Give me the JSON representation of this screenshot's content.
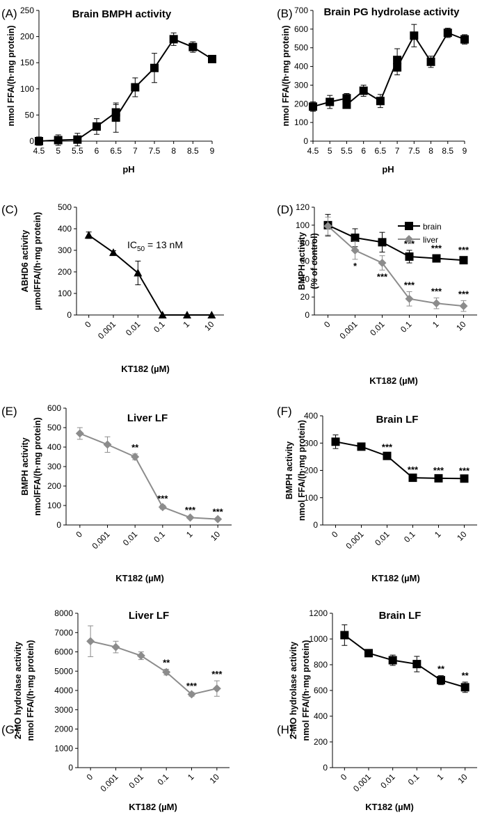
{
  "chart_data": [
    {
      "id": "A",
      "panel_label": "(A)",
      "type": "line",
      "title": "Brain BMPH activity",
      "xlabel": "pH",
      "ylabel": [
        "nmol FFA/(h·mg protein)"
      ],
      "x_kind": "numeric",
      "xlim": [
        4.5,
        9
      ],
      "x_ticks": [
        "4.5",
        "5",
        "5.5",
        "6",
        "6.5",
        "7",
        "7.5",
        "8",
        "8.5",
        "9"
      ],
      "ylim": [
        0,
        250
      ],
      "y_ticks": [
        "0",
        "50",
        "100",
        "150",
        "200",
        "250"
      ],
      "series": [
        {
          "name": "brain",
          "color": "#000000",
          "marker": "square",
          "x": [
            4.5,
            5,
            5.5,
            6,
            6.5,
            6.5,
            7,
            7.5,
            8,
            8.5,
            9
          ],
          "y": [
            0,
            2,
            3,
            28,
            55,
            45,
            103,
            140,
            195,
            180,
            157
          ],
          "err": [
            8,
            10,
            12,
            15,
            15,
            28,
            18,
            28,
            12,
            10,
            5
          ]
        }
      ],
      "significance": [],
      "annotations": []
    },
    {
      "id": "B",
      "panel_label": "(B)",
      "type": "line",
      "title": "Brain PG hydrolase activity",
      "xlabel": "pH",
      "ylabel": [
        "nmol FFA/(h·mg protein)"
      ],
      "x_kind": "numeric",
      "xlim": [
        4.5,
        9
      ],
      "x_ticks": [
        "4.5",
        "5",
        "5.5",
        "6",
        "6.5",
        "7",
        "7.5",
        "8",
        "8.5",
        "9"
      ],
      "ylim": [
        0,
        700
      ],
      "y_ticks": [
        "0",
        "100",
        "200",
        "300",
        "400",
        "500",
        "600",
        "700"
      ],
      "series": [
        {
          "name": "brain",
          "color": "#000000",
          "marker": "square",
          "x": [
            4.5,
            5,
            5.5,
            5.5,
            6,
            6.5,
            7,
            7,
            7.5,
            8,
            8.5,
            9
          ],
          "y": [
            185,
            210,
            230,
            195,
            270,
            215,
            435,
            395,
            565,
            425,
            580,
            545
          ],
          "err": [
            25,
            35,
            25,
            20,
            30,
            35,
            60,
            40,
            60,
            30,
            25,
            25
          ]
        }
      ],
      "significance": [],
      "annotations": []
    },
    {
      "id": "C",
      "panel_label": "(C)",
      "type": "line",
      "title": "",
      "xlabel": "KT182 (µM)",
      "ylabel": [
        "ABHD6  activity",
        "µmolFFA/(h·mg protein)"
      ],
      "x_kind": "category",
      "x_ticks": [
        "0",
        "0.001",
        "0.01",
        "0.1",
        "1",
        "10"
      ],
      "ylim": [
        0,
        500
      ],
      "y_ticks": [
        "0",
        "100",
        "200",
        "300",
        "400",
        "500"
      ],
      "series": [
        {
          "name": "ABHD6",
          "color": "#000000",
          "marker": "triangle",
          "y": [
            370,
            290,
            195,
            0,
            0,
            0
          ],
          "err": [
            15,
            8,
            55,
            0,
            0,
            0
          ]
        }
      ],
      "significance": [],
      "annotations": [
        {
          "text_main": "IC",
          "text_sub": "50",
          "text_rest": " = 13 nM"
        }
      ]
    },
    {
      "id": "D",
      "panel_label": "(D)",
      "type": "line",
      "title": "",
      "xlabel": "KT182 (µM)",
      "ylabel": [
        "BMPH activity",
        "(% of control)"
      ],
      "x_kind": "category",
      "x_ticks": [
        "0",
        "0.001",
        "0.01",
        "0.1",
        "1",
        "10"
      ],
      "ylim": [
        0,
        120
      ],
      "y_ticks": [
        "0",
        "20",
        "40",
        "60",
        "80",
        "100",
        "120"
      ],
      "series": [
        {
          "name": "brain",
          "color": "#000000",
          "marker": "square",
          "y": [
            100,
            86,
            81,
            65,
            63,
            61
          ],
          "err": [
            12,
            10,
            11,
            7,
            4,
            4
          ]
        },
        {
          "name": "liver",
          "color": "#8c8c8c",
          "marker": "diamond",
          "y": [
            99,
            72,
            58,
            18,
            13,
            10
          ],
          "err": [
            10,
            10,
            8,
            8,
            6,
            6
          ]
        }
      ],
      "significance": [
        {
          "series": 0,
          "points": [
            "",
            "",
            "",
            "***",
            "***",
            "***"
          ]
        },
        {
          "series": 1,
          "points": [
            "",
            "*",
            "***",
            "***",
            "***",
            "***"
          ]
        }
      ],
      "legend": [
        "brain",
        "liver"
      ],
      "annotations": []
    },
    {
      "id": "E",
      "panel_label": "(E)",
      "type": "line",
      "title": "Liver LF",
      "xlabel": "KT182 (µM)",
      "ylabel": [
        "BMPH activity",
        "nmolFFA/(h·mg protein)"
      ],
      "x_kind": "category",
      "x_ticks": [
        "0",
        "0.001",
        "0.01",
        "0.1",
        "1",
        "10"
      ],
      "ylim": [
        0,
        600
      ],
      "y_ticks": [
        "0",
        "100",
        "200",
        "300",
        "400",
        "500",
        "600"
      ],
      "series": [
        {
          "name": "liver",
          "color": "#8c8c8c",
          "marker": "diamond",
          "y": [
            470,
            413,
            350,
            92,
            38,
            30
          ],
          "err": [
            30,
            40,
            15,
            10,
            5,
            4
          ]
        }
      ],
      "significance": [
        {
          "series": 0,
          "points": [
            "",
            "",
            "**",
            "***",
            "***",
            "***"
          ]
        }
      ],
      "annotations": []
    },
    {
      "id": "F",
      "panel_label": "(F)",
      "type": "line",
      "title": "Brain LF",
      "xlabel": "KT182  (µM)",
      "ylabel": [
        "BMPH activity",
        "nmol FFA/(h·mg protein)"
      ],
      "x_kind": "category",
      "x_ticks": [
        "0",
        "0.001",
        "0.01",
        "0.1",
        "1",
        "10"
      ],
      "ylim": [
        0,
        400
      ],
      "y_ticks": [
        "0",
        "100",
        "200",
        "300",
        "400"
      ],
      "series": [
        {
          "name": "brain",
          "color": "#000000",
          "marker": "square",
          "y": [
            305,
            287,
            253,
            173,
            171,
            170
          ],
          "err": [
            25,
            10,
            8,
            5,
            5,
            5
          ]
        }
      ],
      "significance": [
        {
          "series": 0,
          "points": [
            "",
            "",
            "***",
            "***",
            "***",
            "***"
          ]
        }
      ],
      "annotations": []
    },
    {
      "id": "G",
      "panel_label": "(G)",
      "type": "line",
      "title": "Liver LF",
      "xlabel": "KT182 (µM)",
      "ylabel": [
        "2-MO hydrolase activity",
        "nmol FFA/(h·mg protein)"
      ],
      "x_kind": "category",
      "x_ticks": [
        "0",
        "0.001",
        "0.01",
        "0.1",
        "1",
        "10"
      ],
      "ylim": [
        0,
        8000
      ],
      "y_ticks": [
        "0",
        "1000",
        "2000",
        "3000",
        "4000",
        "5000",
        "6000",
        "7000",
        "8000"
      ],
      "series": [
        {
          "name": "liver",
          "color": "#8c8c8c",
          "marker": "diamond",
          "y": [
            6550,
            6250,
            5800,
            4950,
            3800,
            4100
          ],
          "err": [
            800,
            300,
            200,
            150,
            100,
            400
          ]
        }
      ],
      "significance": [
        {
          "series": 0,
          "points": [
            "",
            "",
            "",
            "**",
            "***",
            "***"
          ]
        }
      ],
      "annotations": []
    },
    {
      "id": "H",
      "panel_label": "(H)",
      "type": "line",
      "title": "Brain LF",
      "xlabel": "KT182 (µM)",
      "ylabel": [
        "2-MO hydrolase activity",
        "nmol FFA/(h·mg protein)"
      ],
      "x_kind": "category",
      "x_ticks": [
        "0",
        "0.001",
        "0.01",
        "0.1",
        "1",
        "10"
      ],
      "ylim": [
        0,
        1200
      ],
      "y_ticks": [
        "0",
        "200",
        "400",
        "600",
        "800",
        "1000",
        "1200"
      ],
      "series": [
        {
          "name": "brain",
          "color": "#000000",
          "marker": "square",
          "y": [
            1030,
            890,
            835,
            805,
            680,
            625
          ],
          "err": [
            80,
            20,
            40,
            60,
            35,
            40
          ]
        }
      ],
      "significance": [
        {
          "series": 0,
          "points": [
            "",
            "",
            "",
            "",
            "**",
            "**"
          ]
        }
      ],
      "annotations": []
    }
  ]
}
